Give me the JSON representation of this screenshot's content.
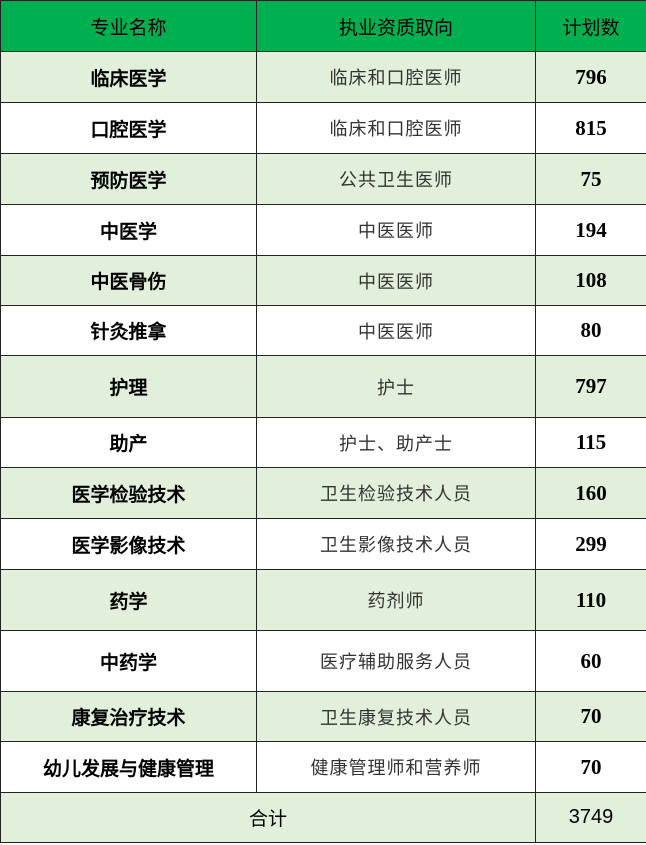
{
  "header": {
    "col1": "专业名称",
    "col2": "执业资质取向",
    "col3": "计划数"
  },
  "colors": {
    "header_bg": "#00b050",
    "alt_row_bg": "#e2efda"
  },
  "rows": [
    {
      "name": "临床医学",
      "qual": "临床和口腔医师",
      "count": "796"
    },
    {
      "name": "口腔医学",
      "qual": "临床和口腔医师",
      "count": "815"
    },
    {
      "name": "预防医学",
      "qual": "公共卫生医师",
      "count": "75"
    },
    {
      "name": "中医学",
      "qual": "中医医师",
      "count": "194"
    },
    {
      "name": "中医骨伤",
      "qual": "中医医师",
      "count": "108"
    },
    {
      "name": "针灸推拿",
      "qual": "中医医师",
      "count": "80"
    },
    {
      "name": "护理",
      "qual": "护士",
      "count": "797"
    },
    {
      "name": "助产",
      "qual": "护士、助产士",
      "count": "115"
    },
    {
      "name": "医学检验技术",
      "qual": "卫生检验技术人员",
      "count": "160"
    },
    {
      "name": "医学影像技术",
      "qual": "卫生影像技术人员",
      "count": "299"
    },
    {
      "name": "药学",
      "qual": "药剂师",
      "count": "110"
    },
    {
      "name": "中药学",
      "qual": "医疗辅助服务人员",
      "count": "60"
    },
    {
      "name": "康复治疗技术",
      "qual": "卫生康复技术人员",
      "count": "70"
    },
    {
      "name": "幼儿发展与健康管理",
      "qual": "健康管理师和营养师",
      "count": "70"
    }
  ],
  "total": {
    "label": "合计",
    "count": "3749"
  }
}
